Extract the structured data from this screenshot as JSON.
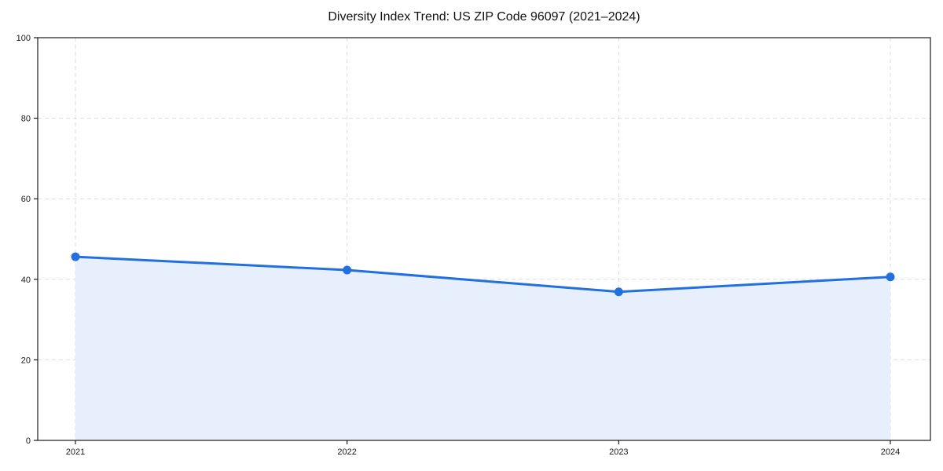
{
  "chart_data": {
    "type": "area",
    "title": "Diversity Index Trend: US ZIP Code 96097 (2021–2024)",
    "categories": [
      "2021",
      "2022",
      "2023",
      "2024"
    ],
    "series": [
      {
        "name": "Diversity Index",
        "values": [
          45.6,
          42.3,
          36.9,
          40.6
        ]
      }
    ],
    "xlabel": "",
    "ylabel": "",
    "ylim": [
      0,
      100
    ],
    "yticks": [
      0,
      20,
      40,
      60,
      80,
      100
    ],
    "grid": true,
    "grid_style": "dashed",
    "legend_position": "none",
    "marker": "circle",
    "colors": {
      "line": "#2270e0",
      "marker": "#2270e0",
      "fill": "#e8effc",
      "grid": "#dcdcdc",
      "axis": "#1a1a1a",
      "text": "#1a1a1a",
      "background": "#ffffff"
    }
  }
}
